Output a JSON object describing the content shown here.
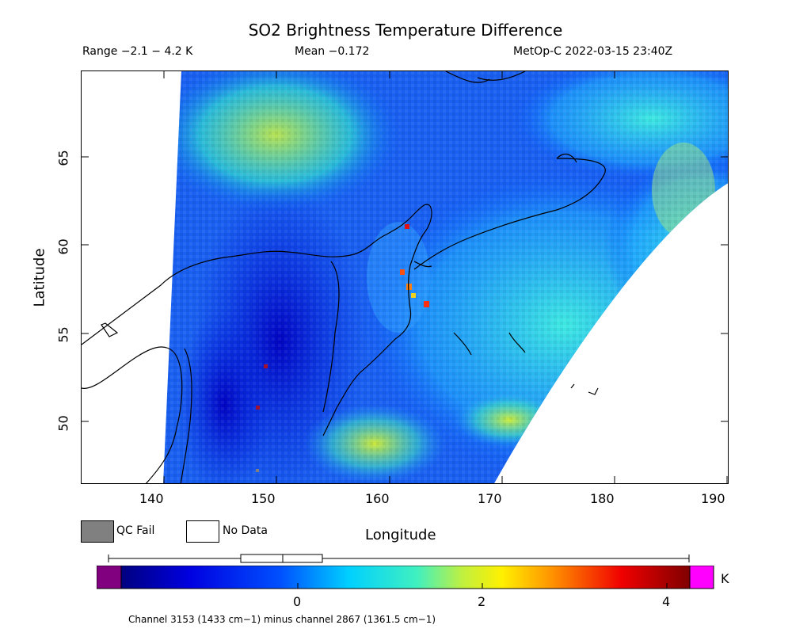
{
  "title": "SO2 Brightness Temperature Difference",
  "range_text": "Range −2.1 − 4.2 K",
  "mean_text": "Mean −0.172",
  "satellite_text": "MetOp-C 2022-03-15 23:40Z",
  "x_axis": {
    "label": "Longitude",
    "ticks": [
      "140",
      "150",
      "160",
      "170",
      "180",
      "190"
    ],
    "range": [
      134,
      191
    ]
  },
  "y_axis": {
    "label": "Latitude",
    "ticks": [
      "50",
      "55",
      "60",
      "65"
    ],
    "range": [
      46.5,
      70
    ]
  },
  "legend": {
    "qc_fail": "QC Fail",
    "no_data": "No Data",
    "qc_color": "#808080"
  },
  "colorbar": {
    "ticks": [
      "0",
      "2",
      "4"
    ],
    "unit": "K",
    "range": [
      -2.1,
      4.2
    ],
    "under_color": "#800080",
    "over_color": "#ff00ff"
  },
  "footer": "Channel 3153 (1433 cm−1) minus channel 2867 (1361.5 cm−1)"
}
